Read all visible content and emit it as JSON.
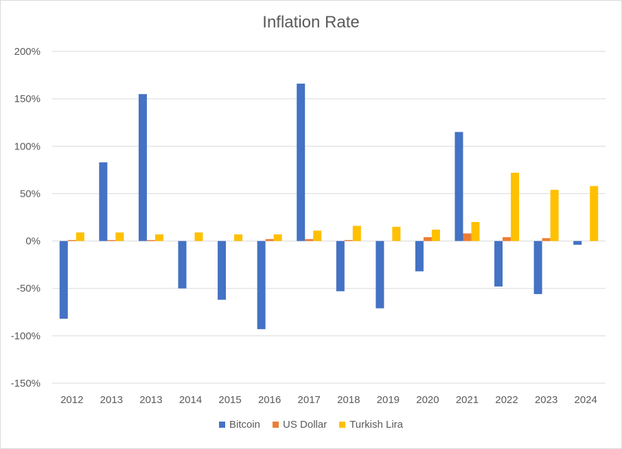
{
  "chart_data": {
    "type": "bar",
    "title": "Inflation Rate",
    "categories": [
      "2012",
      "2013",
      "2013",
      "2014",
      "2015",
      "2016",
      "2017",
      "2018",
      "2019",
      "2020",
      "2021",
      "2022",
      "2023",
      "2024"
    ],
    "series": [
      {
        "name": "Bitcoin",
        "color": "#4472C4",
        "values": [
          -82,
          83,
          155,
          -50,
          -62,
          -93,
          166,
          -53,
          -71,
          -32,
          115,
          -48,
          -56,
          -4
        ]
      },
      {
        "name": "US Dollar",
        "color": "#ED7D31",
        "values": [
          1,
          1,
          1,
          0,
          0,
          2,
          2,
          1,
          0,
          4,
          8,
          4,
          3,
          0
        ]
      },
      {
        "name": "Turkish Lira",
        "color": "#FFC000",
        "values": [
          9,
          9,
          7,
          9,
          7,
          7,
          11,
          16,
          15,
          12,
          20,
          72,
          54,
          58
        ]
      }
    ],
    "yticks": [
      "200%",
      "150%",
      "100%",
      "50%",
      "0%",
      "-50%",
      "-100%",
      "-150%"
    ],
    "ylim": [
      -150,
      200
    ],
    "grid": true,
    "legend_position": "bottom"
  }
}
